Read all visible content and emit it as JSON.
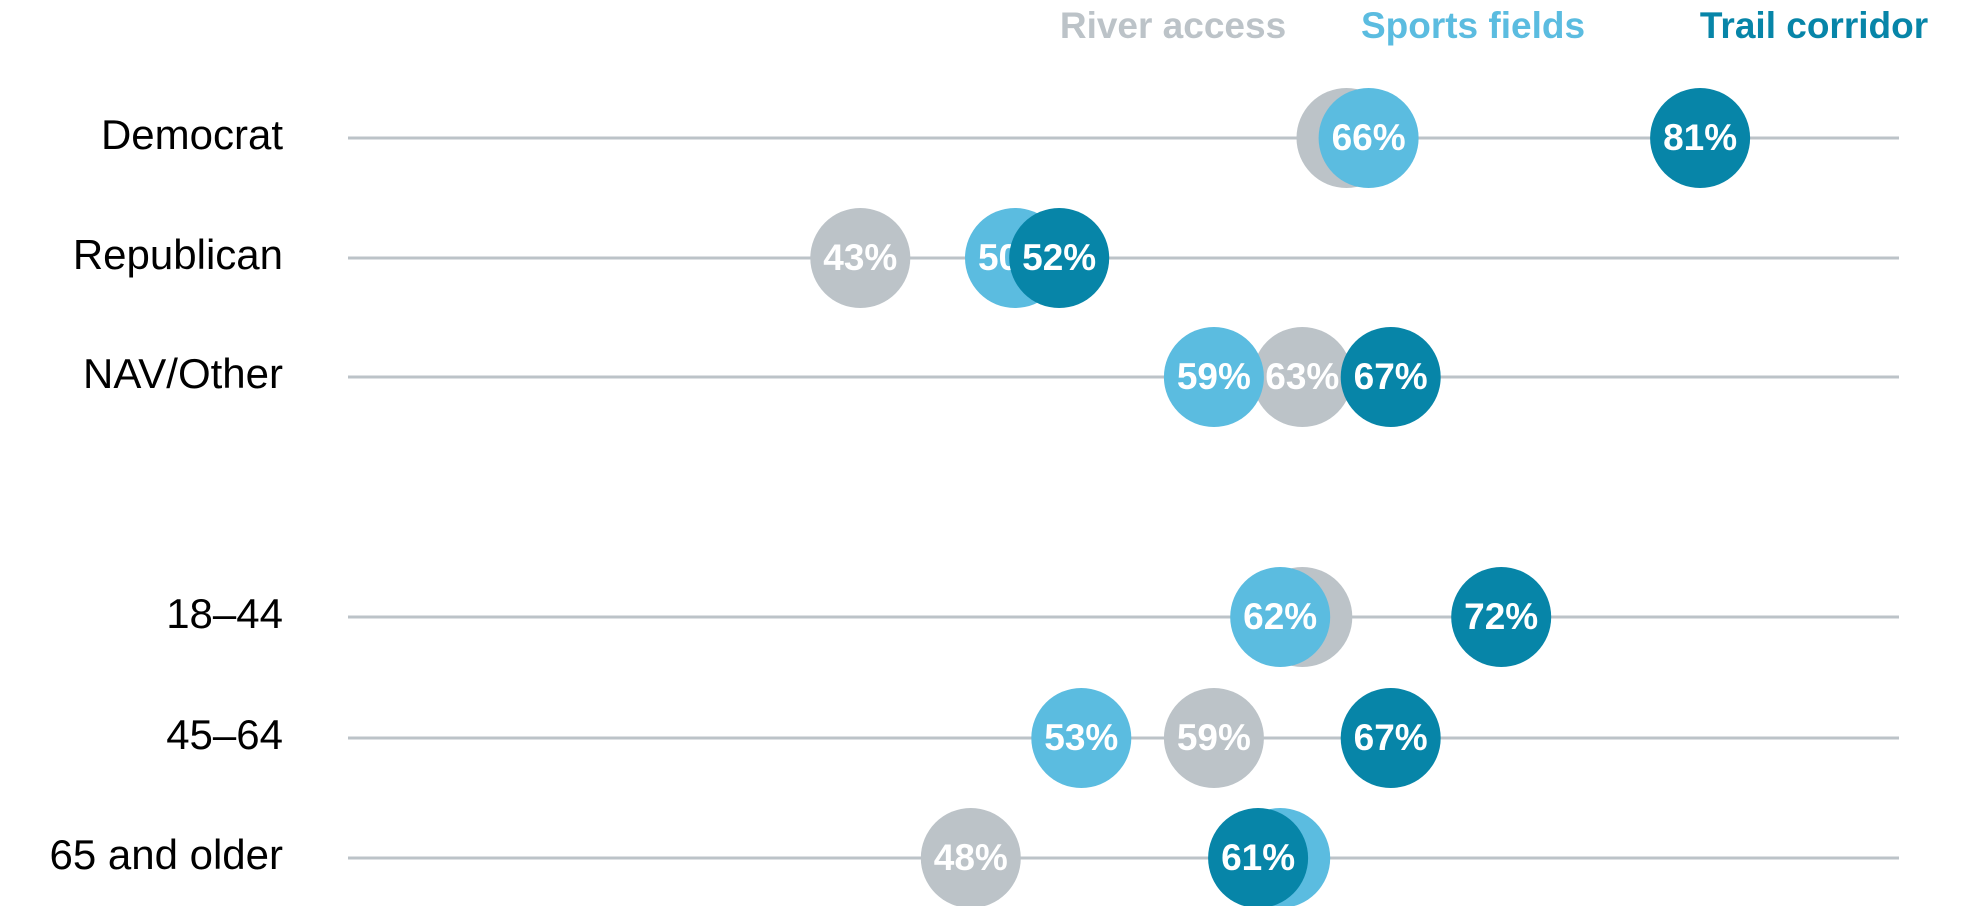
{
  "chart_data": {
    "type": "dot",
    "categories": [
      "Democrat",
      "Republican",
      "NAV/Other",
      "18–44",
      "45–64",
      "65 and older"
    ],
    "series": [
      {
        "name": "River access",
        "color": "#bcc3c8",
        "values": [
          65,
          43,
          63,
          63,
          59,
          48
        ],
        "value_labels": [
          null,
          "43%",
          "63%",
          null,
          "59%",
          "48%"
        ]
      },
      {
        "name": "Sports fields",
        "color": "#5bbce0",
        "values": [
          66,
          50,
          59,
          62,
          53,
          62
        ],
        "value_labels": [
          "66%",
          "50%",
          "59%",
          "62%",
          "53%",
          null
        ]
      },
      {
        "name": "Trail corridor",
        "color": "#0785a8",
        "values": [
          81,
          52,
          67,
          72,
          67,
          61
        ],
        "value_labels": [
          "81%",
          "52%",
          "67%",
          "72%",
          "67%",
          "61%"
        ]
      }
    ]
  }
}
